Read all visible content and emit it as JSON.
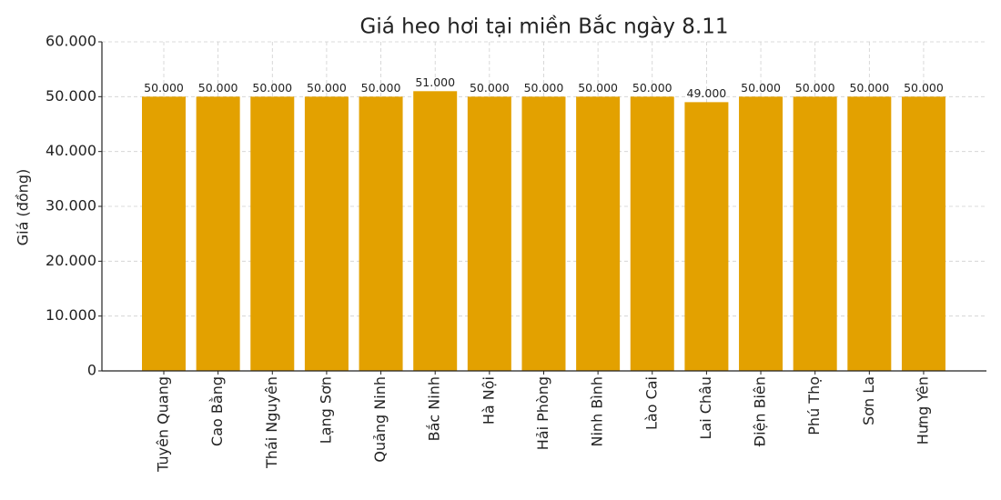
{
  "chart_data": {
    "type": "bar",
    "title": "Giá heo hơi tại miền Bắc ngày 8.11",
    "y_label": "Giá (đồng)",
    "categories": [
      "Tuyên Quang",
      "Cao Bằng",
      "Thái Nguyên",
      "Lạng Sơn",
      "Quảng Ninh",
      "Bắc Ninh",
      "Hà Nội",
      "Hải Phòng",
      "Ninh Bình",
      "Lào Cai",
      "Lai Châu",
      "Điện Biên",
      "Phú Thọ",
      "Sơn La",
      "Hưng Yên"
    ],
    "values": [
      50000,
      50000,
      50000,
      50000,
      50000,
      51000,
      50000,
      50000,
      50000,
      50000,
      49000,
      50000,
      50000,
      50000,
      50000
    ],
    "value_labels": [
      "50.000",
      "50.000",
      "50.000",
      "50.000",
      "50.000",
      "51.000",
      "50.000",
      "50.000",
      "50.000",
      "50.000",
      "49.000",
      "50.000",
      "50.000",
      "50.000",
      "50.000"
    ],
    "color": "#e3a100",
    "ylim": [
      0,
      60000
    ],
    "yticks": [
      0,
      {
        "value": 10000,
        "label": "10.000"
      },
      {
        "value": 20000,
        "label": "20.000"
      },
      {
        "value": 30000,
        "label": "30.000"
      },
      {
        "value": 40000,
        "label": "40.000"
      },
      {
        "value": 50000,
        "label": "50.000"
      },
      {
        "value": 60000,
        "label": "60.000"
      }
    ],
    "grid": true
  }
}
